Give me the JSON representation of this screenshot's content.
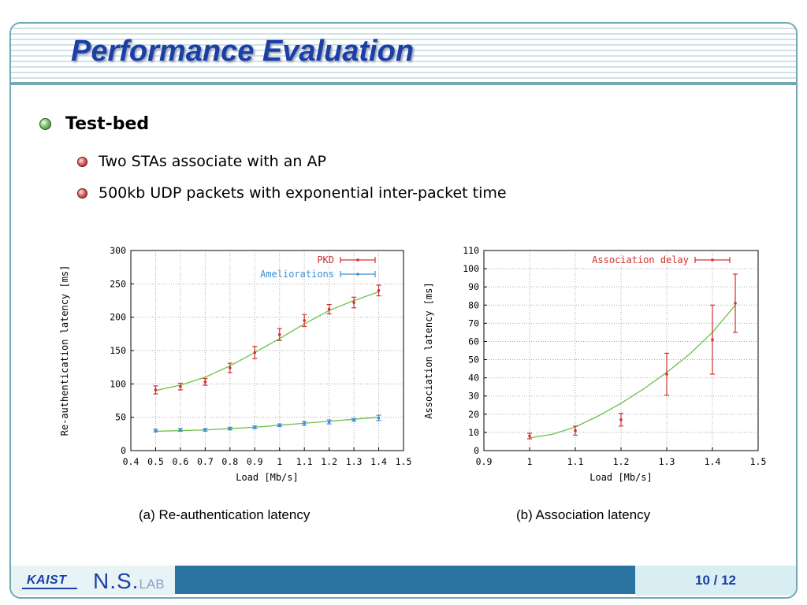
{
  "slide": {
    "title": "Performance Evaluation",
    "bullet_main": "Test-bed",
    "sub_bullets": [
      "Two STAs associate with an AP",
      "500kb UDP packets with exponential inter-packet time"
    ],
    "caption_a": "(a) Re-authentication latency",
    "caption_b": "(b) Association latency"
  },
  "footer": {
    "logo_text": "KAIST",
    "lab_text_main": "N.S.",
    "lab_text_small": "LAB",
    "page": "10 / 12"
  },
  "colors": {
    "title": "#1c3fa7",
    "accent": "#6fa9b4",
    "footer_bar": "#2a73a0",
    "series_red": "#d0312d",
    "series_blue": "#3d8fd1",
    "fit_green": "#6cc04a"
  },
  "chart_data": [
    {
      "type": "line",
      "xlabel": "Load [Mb/s]",
      "ylabel": "Re-authentication latency [ms]",
      "xlim": [
        0.4,
        1.5
      ],
      "ylim": [
        0,
        300
      ],
      "xticks": [
        "0.4",
        "0.5",
        "0.6",
        "0.7",
        "0.8",
        "0.9",
        "1",
        "1.1",
        "1.2",
        "1.3",
        "1.4",
        "1.5"
      ],
      "yticks": [
        "0",
        "50",
        "100",
        "150",
        "200",
        "250",
        "300"
      ],
      "x": [
        0.5,
        0.6,
        0.7,
        0.8,
        0.9,
        1.0,
        1.1,
        1.2,
        1.3,
        1.4
      ],
      "grid": true,
      "legend_position": "top-right",
      "series": [
        {
          "name": "PKD",
          "values": [
            91,
            96,
            103,
            124,
            147,
            174,
            195,
            212,
            222,
            240
          ],
          "errors": [
            6,
            5,
            5,
            7,
            9,
            9,
            9,
            7,
            8,
            8
          ]
        },
        {
          "name": "Ameliorations",
          "values": [
            30,
            31,
            31,
            33,
            35,
            38,
            41,
            43,
            46,
            49
          ],
          "errors": [
            2,
            2,
            2,
            2,
            2,
            2,
            3,
            3,
            2,
            4
          ]
        }
      ],
      "fits": [
        {
          "x": [
            0.5,
            0.6,
            0.7,
            0.8,
            0.9,
            1.0,
            1.1,
            1.2,
            1.3,
            1.4
          ],
          "y": [
            90,
            98,
            110,
            127,
            147,
            168,
            190,
            210,
            225,
            238
          ]
        },
        {
          "x": [
            0.5,
            0.6,
            0.7,
            0.8,
            0.9,
            1.0,
            1.1,
            1.2,
            1.3,
            1.4
          ],
          "y": [
            29,
            30,
            31,
            33,
            35,
            38,
            41,
            44,
            47,
            50
          ]
        }
      ]
    },
    {
      "type": "line",
      "xlabel": "Load [Mb/s]",
      "ylabel": "Association latency [ms]",
      "xlim": [
        0.9,
        1.5
      ],
      "ylim": [
        0,
        110
      ],
      "xticks": [
        "0.9",
        "1",
        "1.1",
        "1.2",
        "1.3",
        "1.4",
        "1.5"
      ],
      "yticks": [
        "0",
        "10",
        "20",
        "30",
        "40",
        "50",
        "60",
        "70",
        "80",
        "90",
        "100",
        "110"
      ],
      "x": [
        1.0,
        1.1,
        1.2,
        1.3,
        1.4,
        1.45
      ],
      "grid": true,
      "legend_position": "top-right",
      "series": [
        {
          "name": "Association delay",
          "values": [
            8,
            11,
            17,
            42,
            61,
            81
          ],
          "errors": [
            1.5,
            2.5,
            3.5,
            11.5,
            19,
            16
          ]
        }
      ],
      "fits": [
        {
          "x": [
            1.0,
            1.05,
            1.1,
            1.15,
            1.2,
            1.25,
            1.3,
            1.35,
            1.4,
            1.45
          ],
          "y": [
            7,
            9,
            13,
            19,
            26,
            34,
            43,
            53,
            65,
            80
          ]
        }
      ]
    }
  ]
}
